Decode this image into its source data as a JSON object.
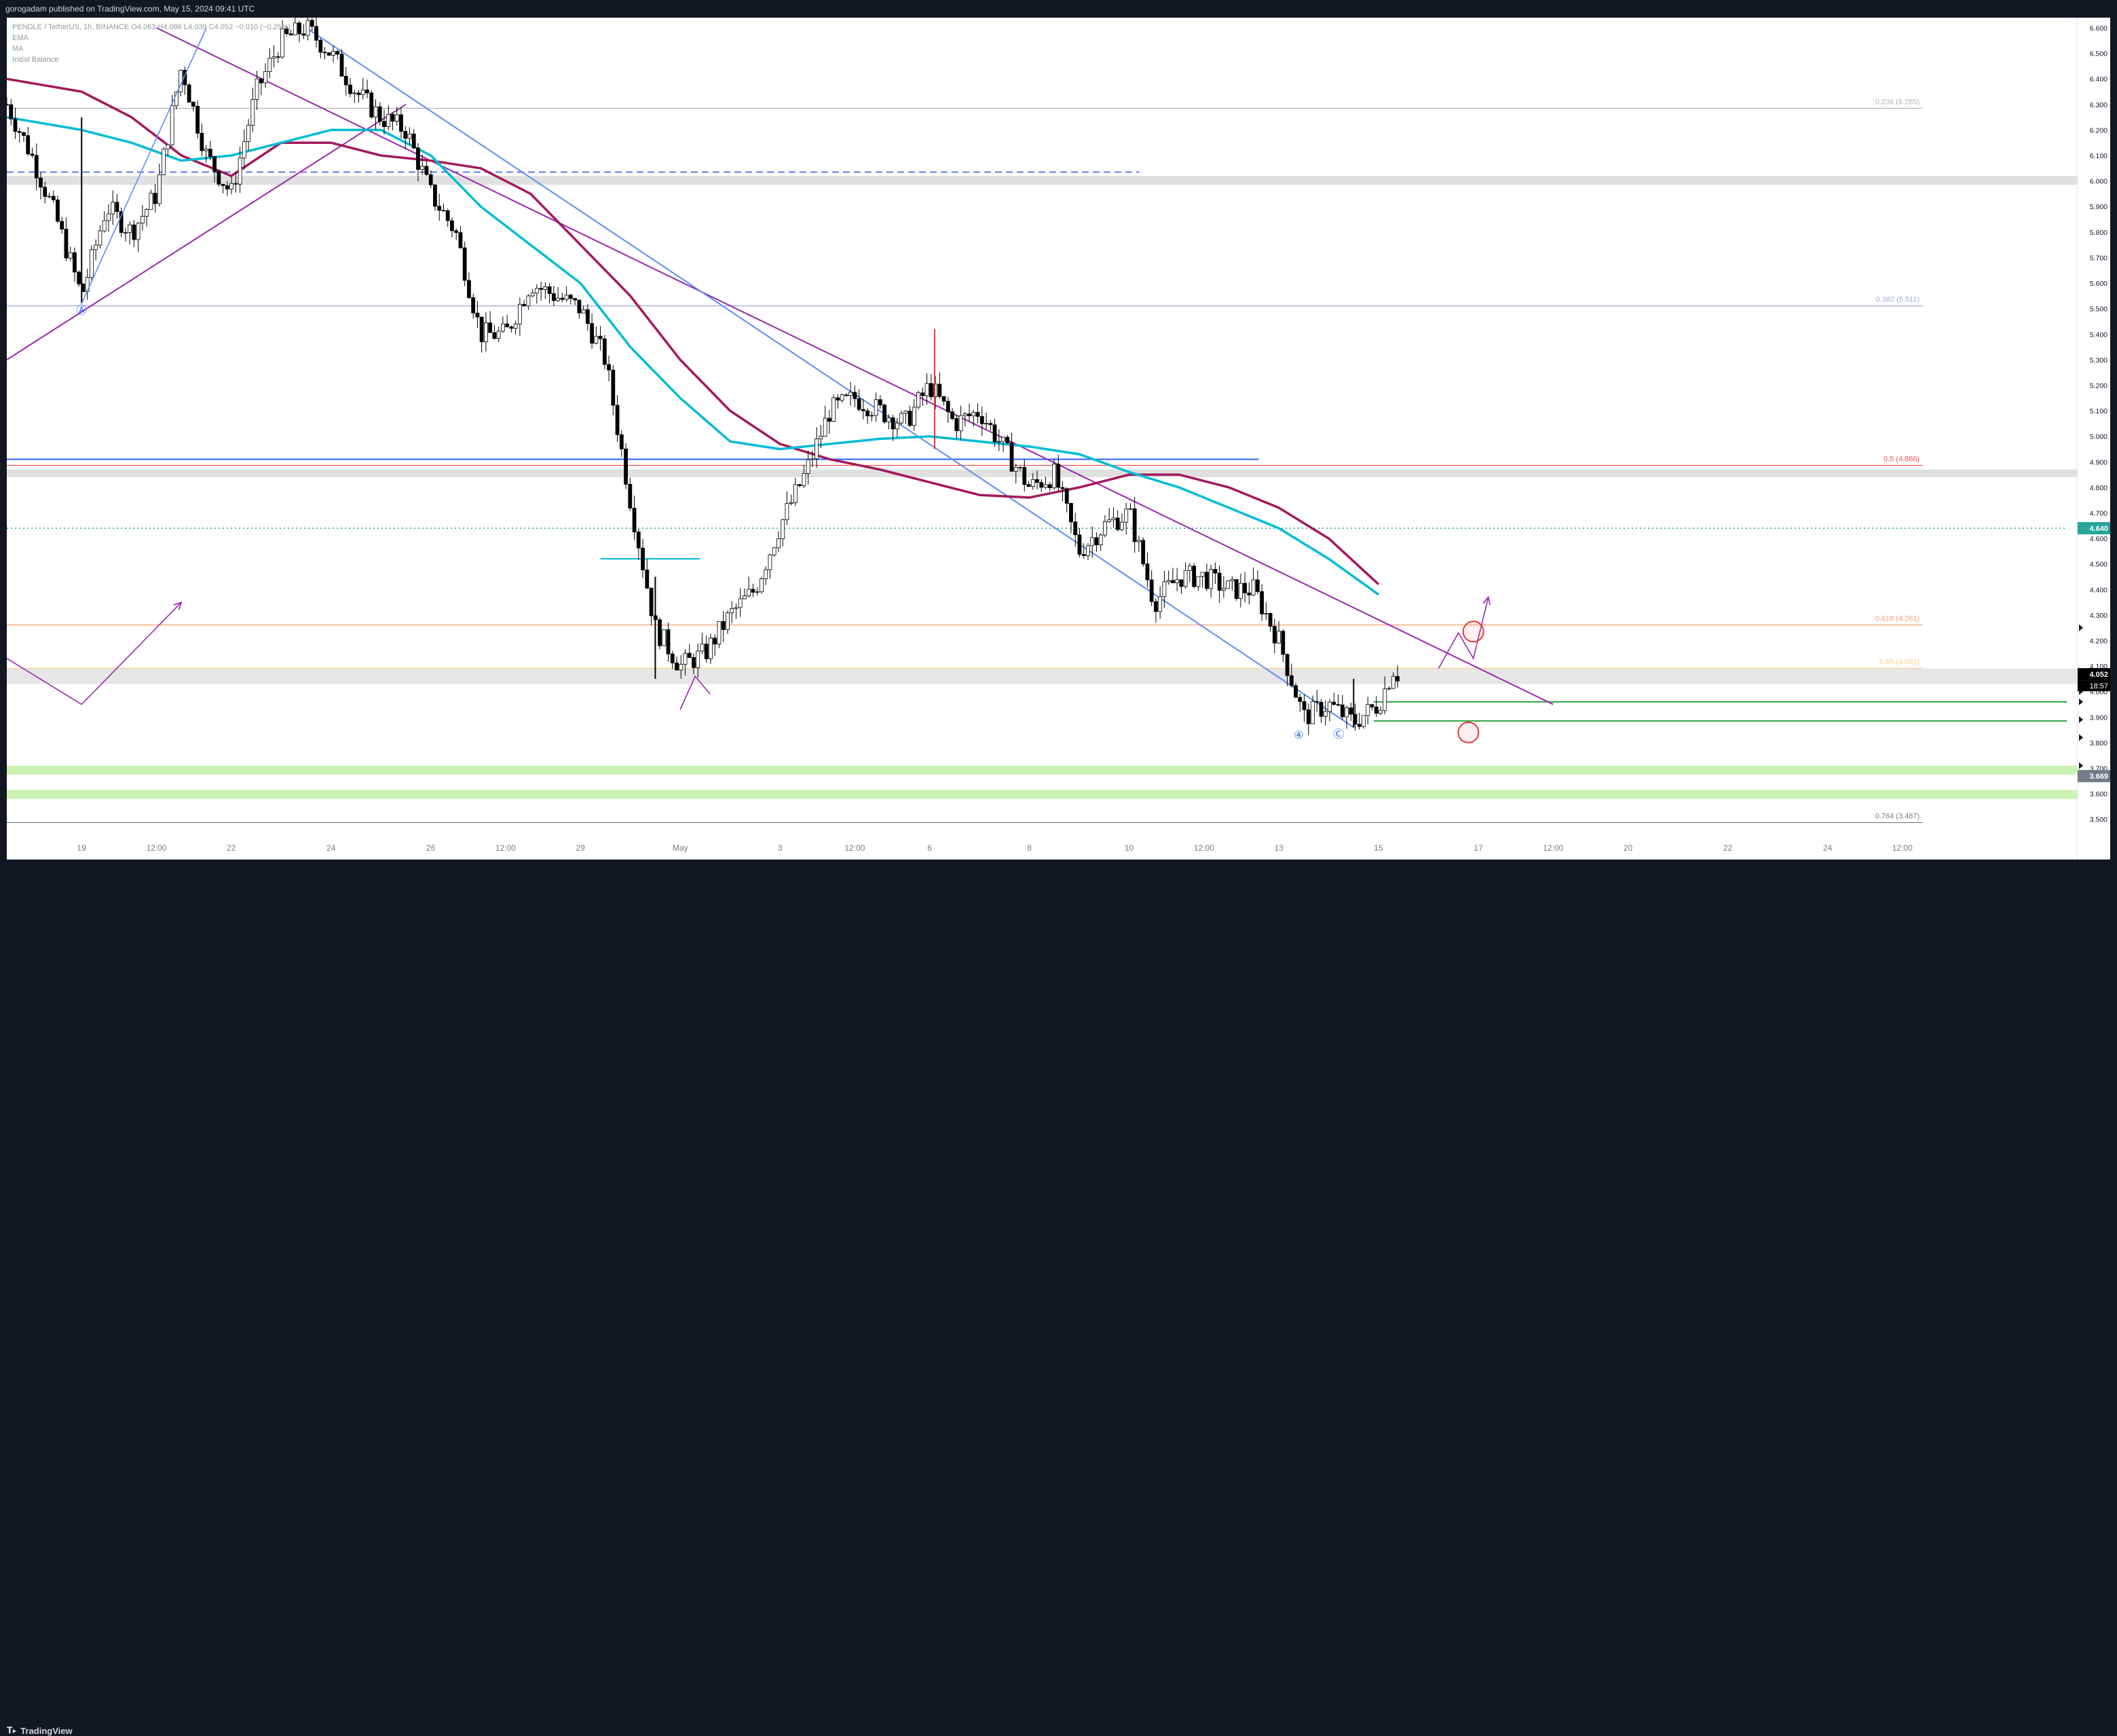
{
  "header": {
    "published": "gorogadam published on TradingView.com, May 15, 2024 09:41 UTC"
  },
  "legend": {
    "symbol_line": "PENDLE / TetherUS, 1h, BINANCE",
    "ohlc": "O4.063 H4.086 L4.039 C4.052 −0.010 (−0.25%)",
    "indicators": [
      "EMA",
      "MA",
      "Initial Balance"
    ]
  },
  "footer": {
    "brand": "TradingView",
    "logo_icon": "tradingview-logo-icon"
  },
  "price_badges": {
    "green": {
      "text": "4.640",
      "value": 4.64,
      "color": "#26a69a"
    },
    "last": {
      "text": "4.052",
      "value": 4.052,
      "color": "#000000"
    },
    "countdown": {
      "text": "18:57"
    },
    "low": {
      "text": "3.669",
      "value": 3.669,
      "color": "#787b86"
    }
  },
  "chart_data": {
    "type": "candlestick",
    "symbol": "PENDLE / TetherUS",
    "timeframe": "1h",
    "exchange": "BINANCE",
    "y_axis": {
      "ticks": [
        6.6,
        6.5,
        6.4,
        6.3,
        6.2,
        6.1,
        6.0,
        5.9,
        5.8,
        5.7,
        5.6,
        5.5,
        5.4,
        5.3,
        5.2,
        5.1,
        5.0,
        4.9,
        4.8,
        4.7,
        4.6,
        4.5,
        4.4,
        4.3,
        4.2,
        4.1,
        4.0,
        3.9,
        3.8,
        3.7,
        3.6,
        3.5
      ],
      "tick_labels": [
        "6.600",
        "6.500",
        "6.400",
        "6.300",
        "6.200",
        "6.100",
        "6.000",
        "5.900",
        "5.800",
        "5.700",
        "5.600",
        "5.500",
        "5.400",
        "5.300",
        "5.200",
        "5.100",
        "5.000",
        "4.900",
        "4.800",
        "4.700",
        "4.600",
        "4.500",
        "4.400",
        "4.300",
        "4.200",
        "4.100",
        "4.000",
        "3.900",
        "3.800",
        "3.700",
        "3.600",
        "3.500"
      ],
      "range": [
        3.43,
        6.64
      ]
    },
    "x_axis": {
      "range": [
        -0.5,
        41
      ],
      "ticks": [
        {
          "x": 1,
          "label": "19"
        },
        {
          "x": 2.5,
          "label": "12:00"
        },
        {
          "x": 4,
          "label": "22"
        },
        {
          "x": 6,
          "label": "24"
        },
        {
          "x": 8,
          "label": "26"
        },
        {
          "x": 9.5,
          "label": "12:00"
        },
        {
          "x": 11,
          "label": "29"
        },
        {
          "x": 13,
          "label": "May"
        },
        {
          "x": 15,
          "label": "3"
        },
        {
          "x": 16.5,
          "label": "12:00"
        },
        {
          "x": 18,
          "label": "6"
        },
        {
          "x": 20,
          "label": "8"
        },
        {
          "x": 22,
          "label": "10"
        },
        {
          "x": 23.5,
          "label": "12:00"
        },
        {
          "x": 25,
          "label": "13"
        },
        {
          "x": 27,
          "label": "15"
        },
        {
          "x": 29,
          "label": "17"
        },
        {
          "x": 30.5,
          "label": "12:00"
        },
        {
          "x": 32,
          "label": "20"
        },
        {
          "x": 34,
          "label": "22"
        },
        {
          "x": 36,
          "label": "24"
        },
        {
          "x": 37.5,
          "label": "12:00"
        }
      ]
    },
    "price_path": [
      [
        -0.5,
        6.3
      ],
      [
        0,
        6.1
      ],
      [
        0.5,
        5.85
      ],
      [
        1,
        5.55
      ],
      [
        1.5,
        5.9
      ],
      [
        2,
        5.8
      ],
      [
        2.5,
        5.95
      ],
      [
        3,
        6.45
      ],
      [
        3.5,
        6.1
      ],
      [
        4,
        5.95
      ],
      [
        4.5,
        6.35
      ],
      [
        5,
        6.55
      ],
      [
        5.5,
        6.6
      ],
      [
        6,
        6.5
      ],
      [
        6.5,
        6.35
      ],
      [
        7,
        6.25
      ],
      [
        7.5,
        6.2
      ],
      [
        8,
        5.95
      ],
      [
        8.5,
        5.8
      ],
      [
        9,
        5.4
      ],
      [
        9.5,
        5.4
      ],
      [
        10,
        5.6
      ],
      [
        10.5,
        5.55
      ],
      [
        11,
        5.5
      ],
      [
        11.5,
        5.3
      ],
      [
        12,
        4.75
      ],
      [
        12.5,
        4.25
      ],
      [
        13,
        4.1
      ],
      [
        13.5,
        4.15
      ],
      [
        14,
        4.3
      ],
      [
        14.5,
        4.4
      ],
      [
        15,
        4.65
      ],
      [
        15.5,
        4.85
      ],
      [
        16,
        5.1
      ],
      [
        16.5,
        5.15
      ],
      [
        17,
        5.1
      ],
      [
        17.5,
        5.05
      ],
      [
        18,
        5.2
      ],
      [
        18.5,
        5.05
      ],
      [
        19,
        5.1
      ],
      [
        19.5,
        4.95
      ],
      [
        20,
        4.8
      ],
      [
        20.5,
        4.85
      ],
      [
        21,
        4.55
      ],
      [
        21.5,
        4.65
      ],
      [
        22,
        4.7
      ],
      [
        22.5,
        4.35
      ],
      [
        23,
        4.45
      ],
      [
        23.5,
        4.45
      ],
      [
        24,
        4.4
      ],
      [
        24.5,
        4.4
      ],
      [
        25,
        4.2
      ],
      [
        25.5,
        3.9
      ],
      [
        26,
        3.95
      ],
      [
        26.5,
        3.88
      ],
      [
        27,
        3.95
      ],
      [
        27.3,
        4.09
      ],
      [
        27.45,
        4.052
      ]
    ],
    "candle_extremes": [
      {
        "x": 18.1,
        "high": 5.42,
        "low": 4.95
      },
      {
        "x": 1,
        "high": 6.25,
        "low": 5.52
      },
      {
        "x": 12.5,
        "high": 4.45,
        "low": 4.05
      },
      {
        "x": 26.5,
        "high": 4.05,
        "low": 3.86
      }
    ],
    "ema_teal": [
      [
        -0.5,
        6.25
      ],
      [
        1,
        6.2
      ],
      [
        2,
        6.15
      ],
      [
        3,
        6.08
      ],
      [
        4,
        6.1
      ],
      [
        5,
        6.15
      ],
      [
        6,
        6.2
      ],
      [
        7,
        6.2
      ],
      [
        8,
        6.1
      ],
      [
        9,
        5.9
      ],
      [
        10,
        5.75
      ],
      [
        11,
        5.6
      ],
      [
        12,
        5.35
      ],
      [
        13,
        5.15
      ],
      [
        14,
        4.98
      ],
      [
        15,
        4.95
      ],
      [
        16,
        4.97
      ],
      [
        17,
        4.99
      ],
      [
        18,
        5.0
      ],
      [
        19,
        4.98
      ],
      [
        20,
        4.96
      ],
      [
        21,
        4.93
      ],
      [
        22,
        4.86
      ],
      [
        23,
        4.8
      ],
      [
        24,
        4.72
      ],
      [
        25,
        4.64
      ],
      [
        26,
        4.52
      ],
      [
        27,
        4.38
      ]
    ],
    "ma_maroon": [
      [
        -0.5,
        6.4
      ],
      [
        1,
        6.35
      ],
      [
        2,
        6.25
      ],
      [
        3,
        6.1
      ],
      [
        4,
        6.02
      ],
      [
        5,
        6.15
      ],
      [
        6,
        6.15
      ],
      [
        7,
        6.1
      ],
      [
        8,
        6.08
      ],
      [
        9,
        6.05
      ],
      [
        10,
        5.95
      ],
      [
        11,
        5.75
      ],
      [
        12,
        5.55
      ],
      [
        13,
        5.3
      ],
      [
        14,
        5.1
      ],
      [
        15,
        4.97
      ],
      [
        16,
        4.91
      ],
      [
        17,
        4.87
      ],
      [
        18,
        4.82
      ],
      [
        19,
        4.77
      ],
      [
        20,
        4.76
      ],
      [
        21,
        4.8
      ],
      [
        22,
        4.85
      ],
      [
        23,
        4.85
      ],
      [
        24,
        4.8
      ],
      [
        25,
        4.72
      ],
      [
        26,
        4.6
      ],
      [
        27,
        4.42
      ]
    ],
    "fib_levels": [
      {
        "ratio": "0.236",
        "price": 6.285,
        "label": "0.236 (6.285)",
        "color": "#b2b5be"
      },
      {
        "ratio": "0.382",
        "price": 5.511,
        "label": "0.382 (5.511)",
        "color": "#9fa8da"
      },
      {
        "ratio": "0.5",
        "price": 4.886,
        "label": "0.5 (4.886)",
        "color": "#ef5350"
      },
      {
        "ratio": "0.618",
        "price": 4.261,
        "label": "0.618 (4.261)",
        "color": "#f7a072"
      },
      {
        "ratio": "0.65",
        "price": 4.091,
        "label": "0.65 (4.091)",
        "color": "#ffcc80"
      },
      {
        "ratio": "0.764",
        "price": 3.487,
        "label": "0.764 (3.487)",
        "color": "#787b86"
      }
    ],
    "zones": [
      {
        "from": 5.985,
        "to": 6.02,
        "color": "#e0e0e0"
      },
      {
        "from": 4.84,
        "to": 4.87,
        "color": "#e0e0e0"
      },
      {
        "from": 4.03,
        "to": 4.09,
        "color": "#e6e6e6"
      },
      {
        "from": 3.675,
        "to": 3.71,
        "color": "#ccf2b3"
      },
      {
        "from": 3.58,
        "to": 3.615,
        "color": "#ccf2b3"
      }
    ],
    "horizontal_lines": [
      {
        "price": 6.035,
        "x0": -0.5,
        "x1": 22.2,
        "style": "dashed",
        "color": "#3f51e0"
      },
      {
        "price": 4.91,
        "x0": -0.5,
        "x1": 24.6,
        "style": "solid",
        "color": "#2962ff"
      },
      {
        "price": 4.64,
        "x0": -0.5,
        "x1": 40.8,
        "style": "dotted",
        "color": "#26a69a"
      },
      {
        "price": 4.52,
        "x0": 11.4,
        "x1": 13.4,
        "style": "solid",
        "color": "#00bcd4"
      },
      {
        "price": 3.96,
        "x0": 26.9,
        "x1": 40.8,
        "style": "solid",
        "color": "#2ea043"
      },
      {
        "price": 3.885,
        "x0": 26.9,
        "x1": 40.8,
        "style": "solid",
        "color": "#2ea043"
      }
    ],
    "trendlines": [
      {
        "points": [
          [
            -0.5,
            5.3
          ],
          [
            7.5,
            6.3
          ]
        ],
        "color": "#9c27b0"
      },
      {
        "points": [
          [
            2.5,
            6.6
          ],
          [
            30.5,
            3.95
          ]
        ],
        "color": "#9c27b0"
      },
      {
        "points": [
          [
            5.5,
            6.6
          ],
          [
            26.5,
            3.86
          ]
        ],
        "color": "#5b8def"
      }
    ],
    "wave_paths": [
      {
        "points": [
          [
            -0.5,
            4.13
          ],
          [
            1,
            3.95
          ],
          [
            3,
            4.35
          ]
        ],
        "color": "#9c27b0",
        "arrow": true
      },
      {
        "points": [
          [
            1,
            5.52
          ],
          [
            3.5,
            6.6
          ]
        ],
        "color": "#5b8def",
        "arrow": false
      },
      {
        "points": [
          [
            13,
            3.93
          ],
          [
            13.3,
            4.06
          ],
          [
            13.6,
            3.99
          ]
        ],
        "color": "#9c27b0",
        "arrow": false
      },
      {
        "points": [
          [
            28.2,
            4.09
          ],
          [
            28.6,
            4.23
          ],
          [
            28.9,
            4.13
          ],
          [
            29.2,
            4.37
          ]
        ],
        "color": "#9c27b0",
        "arrow": true
      }
    ],
    "circles": [
      {
        "x": 28.9,
        "price": 4.235,
        "color": "#e53935"
      },
      {
        "x": 28.8,
        "price": 3.84,
        "color": "#e53935"
      }
    ],
    "wave_labels": [
      {
        "x": 1,
        "price": 5.48,
        "text": "Ⓐ"
      },
      {
        "x": 25.4,
        "price": 3.815,
        "text": "④"
      },
      {
        "x": 26.2,
        "price": 3.82,
        "text": "Ⓒ"
      }
    ],
    "price_flags": [
      4.25,
      4.0,
      3.96,
      3.89,
      3.82,
      3.71
    ]
  }
}
